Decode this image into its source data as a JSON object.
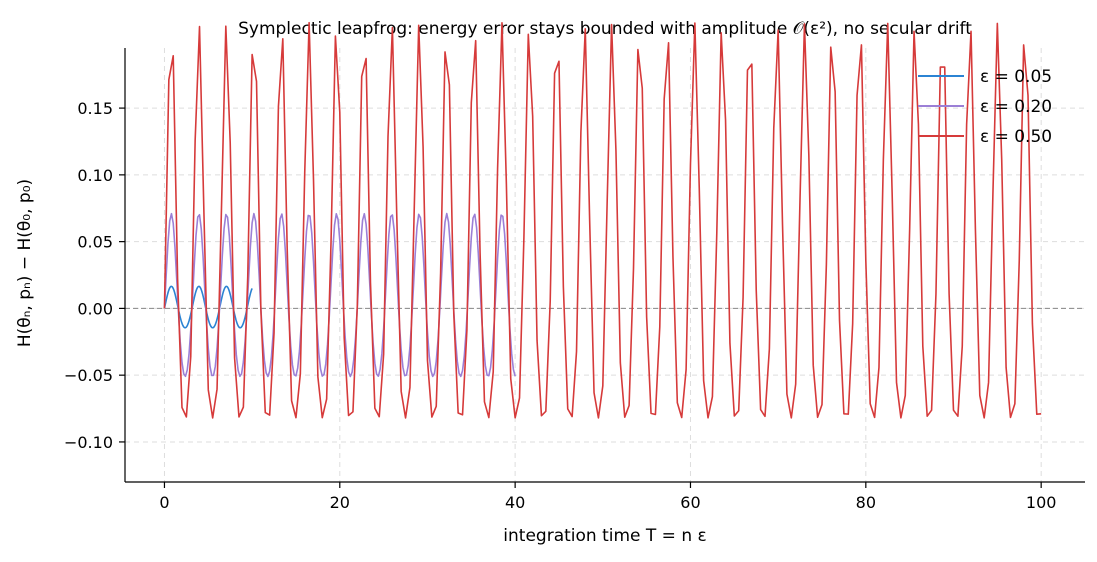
{
  "chart_data": {
    "type": "line",
    "title": "Symplectic leapfrog: energy error stays bounded with amplitude 𝒪(ε²), no secular drift",
    "xlabel": "integration time T = n ε",
    "ylabel": "H(θₙ, pₙ) − H(θ₀, p₀)",
    "xlim": [
      -4.5,
      105
    ],
    "ylim": [
      -0.13,
      0.195
    ],
    "x_ticks": [
      0,
      20,
      40,
      60,
      80,
      100
    ],
    "x_tick_labels": [
      "0",
      "20",
      "40",
      "60",
      "80",
      "100"
    ],
    "y_ticks": [
      -0.1,
      -0.05,
      0.0,
      0.05,
      0.1,
      0.15
    ],
    "y_tick_labels": [
      "−0.10",
      "−0.05",
      "0.00",
      "0.05",
      "0.10",
      "0.15"
    ],
    "grid": true,
    "reference_line_y": 0,
    "legend_position": "top-right",
    "series": [
      {
        "name": "ε = 0.05",
        "color": "#2b83d3",
        "dt": 0.05,
        "t_end": 10,
        "amplitude": 0.0155,
        "period": 3.14159,
        "offset": 0.0005
      },
      {
        "name": "ε = 0.20",
        "color": "#9b7fd6",
        "dt": 0.2,
        "t_end": 40,
        "amplitude": 0.061,
        "period": 3.14159,
        "offset": 0.005
      },
      {
        "name": "ε = 0.50",
        "color": "#d63a3a",
        "dt": 0.5,
        "t_end": 100,
        "amplitude": 0.148,
        "period": 3.14159,
        "offset": 0.033
      }
    ]
  }
}
